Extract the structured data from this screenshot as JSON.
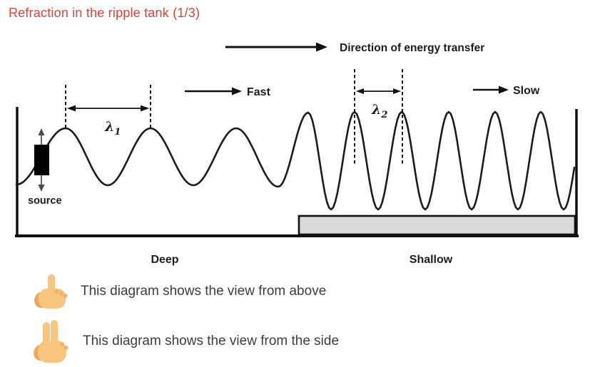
{
  "title": "Refraction in the ripple tank (1/3)",
  "colors": {
    "title_red": "#d8453a",
    "ink": "#1d1d1d",
    "option_text": "#3d3d3d",
    "shallow_fill": "#d9d9d9",
    "hand_main": "#f7c57e",
    "hand_shade": "#eda65a",
    "hand_knuckle": "#f0b269"
  },
  "diagram": {
    "energy_arrow_label": "Direction of energy transfer",
    "fast_label": "Fast",
    "slow_label": "Slow",
    "lambda1_label": "λ",
    "lambda1_sub": "1",
    "lambda2_label": "λ",
    "lambda2_sub": "2",
    "source_label": "source",
    "deep_label": "Deep",
    "shallow_label": "Shallow"
  },
  "options": [
    {
      "icon": "one-finger-hand-icon",
      "text": "This diagram shows the view from above"
    },
    {
      "icon": "two-finger-hand-icon",
      "text": "This diagram shows the view from the side"
    }
  ]
}
